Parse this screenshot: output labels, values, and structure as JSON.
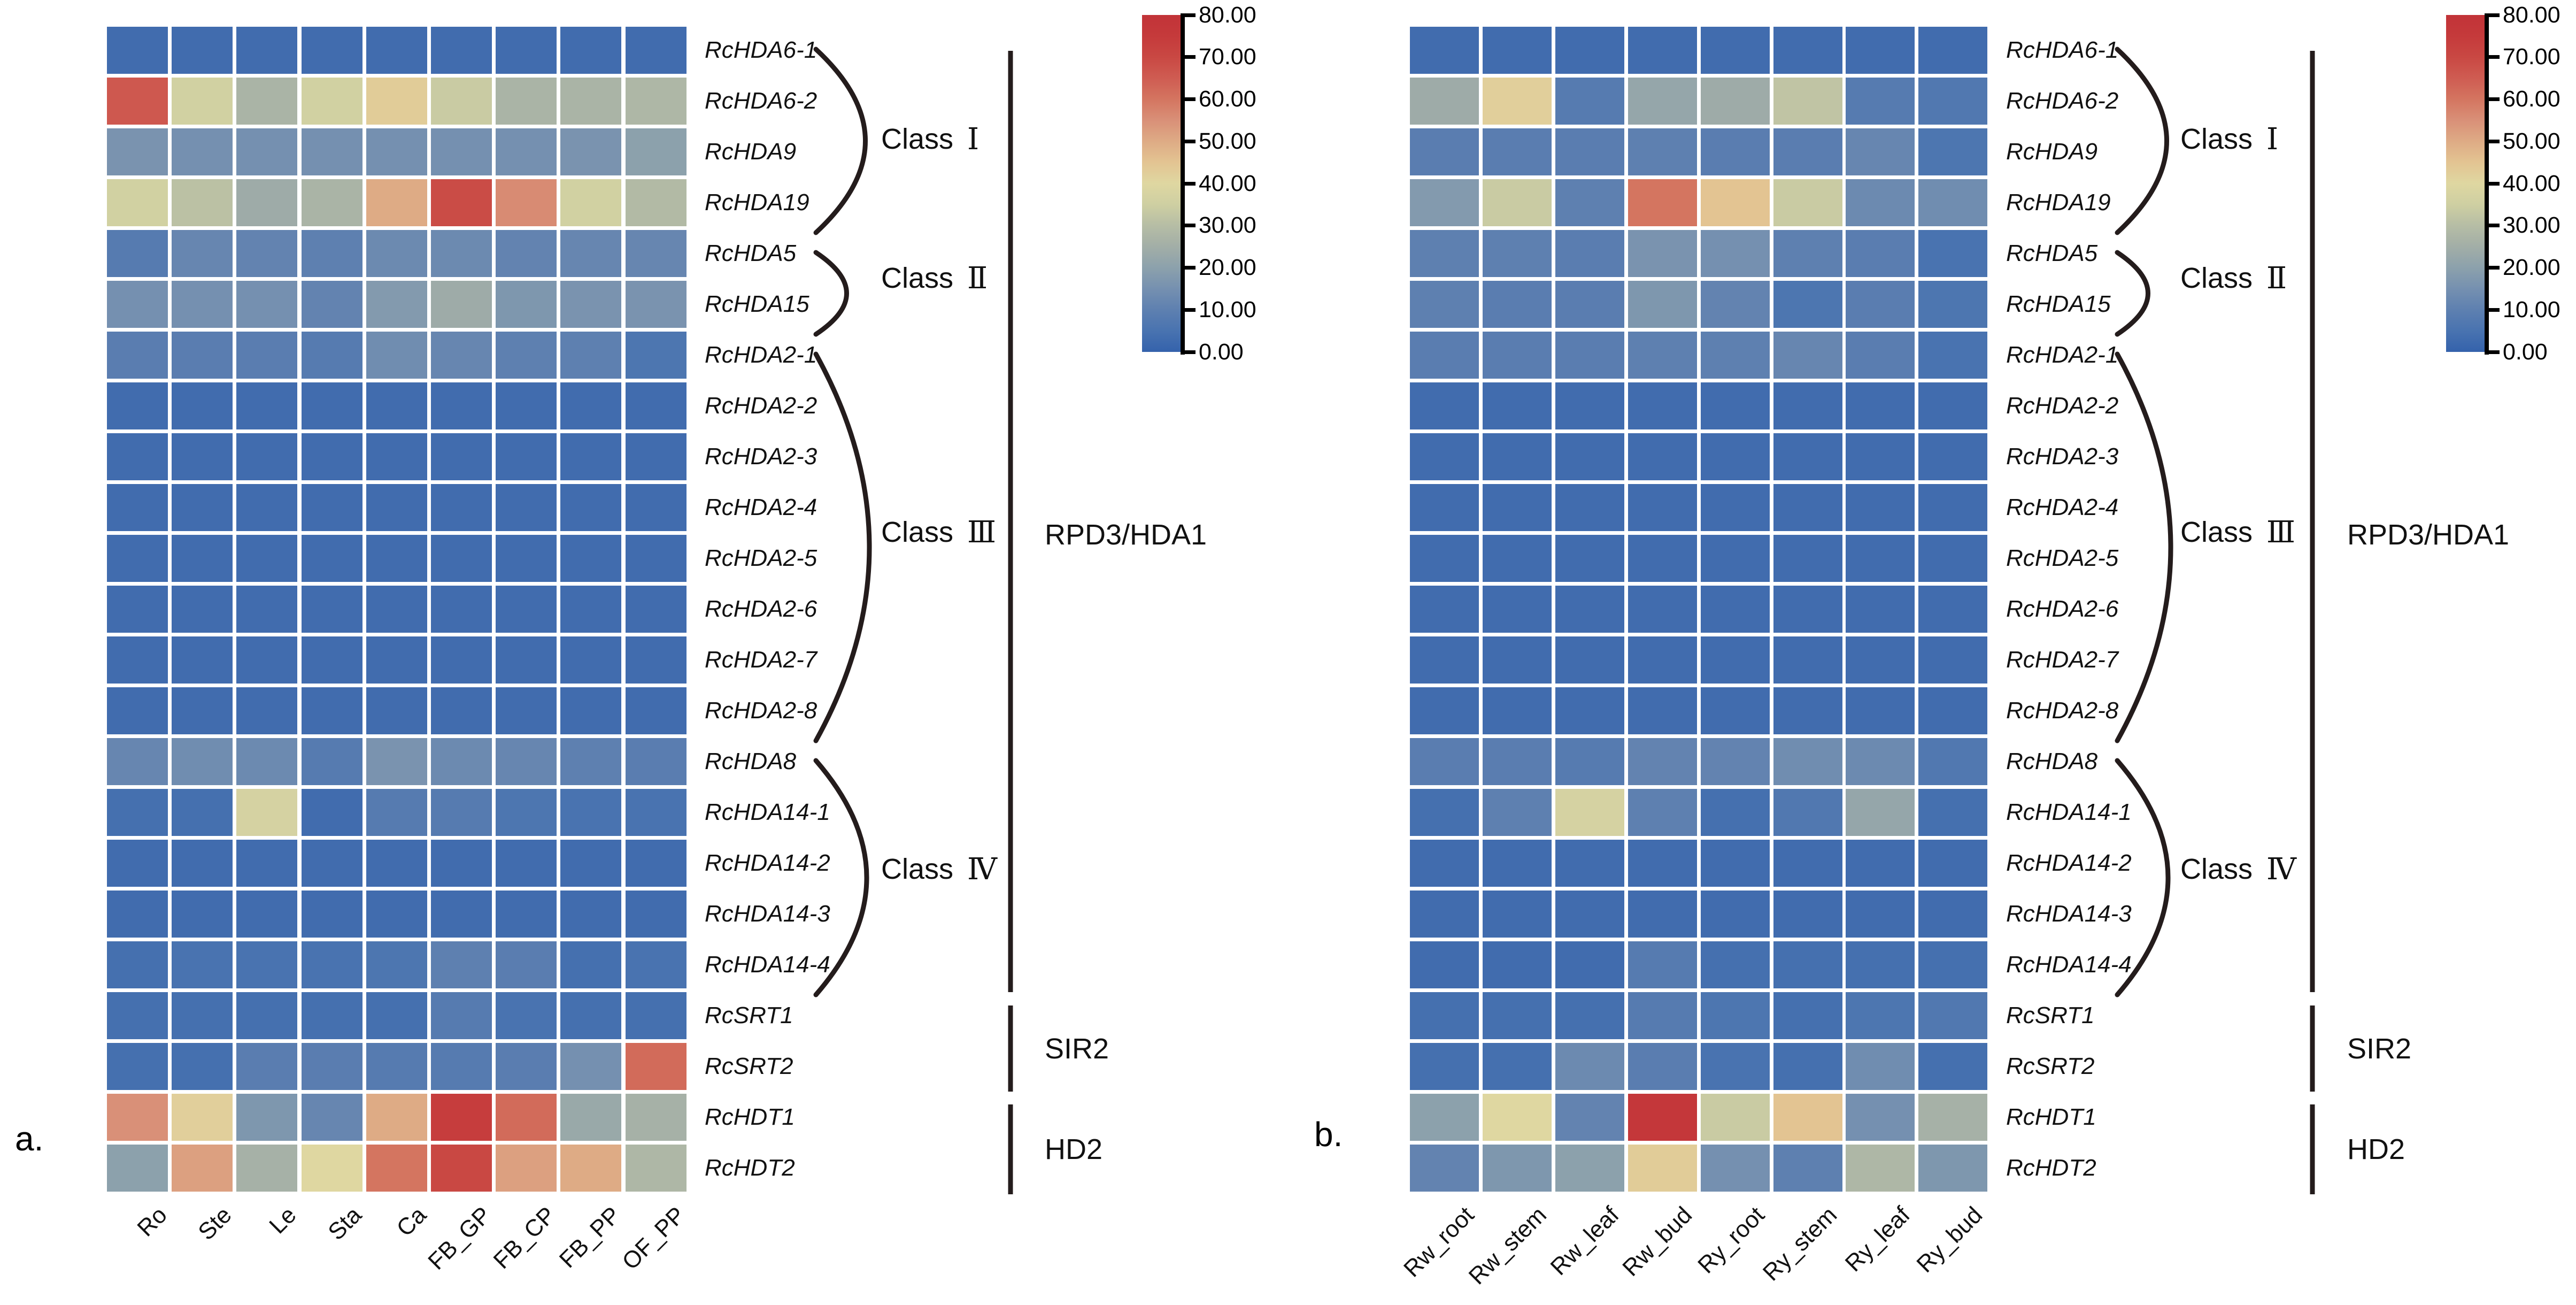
{
  "chart_data": [
    {
      "type": "heatmap",
      "panel_letter": "a.",
      "x_categories": [
        "Ro",
        "Ste",
        "Le",
        "Sta",
        "Ca",
        "FB_GP",
        "FB_CP",
        "FB_PP",
        "OF_PP"
      ],
      "y_categories": [
        "RcHDA6-1",
        "RcHDA6-2",
        "RcHDA9",
        "RcHDA19",
        "RcHDA5",
        "RcHDA15",
        "RcHDA2-1",
        "RcHDA2-2",
        "RcHDA2-3",
        "RcHDA2-4",
        "RcHDA2-5",
        "RcHDA2-6",
        "RcHDA2-7",
        "RcHDA2-8",
        "RcHDA8",
        "RcHDA14-1",
        "RcHDA14-2",
        "RcHDA14-3",
        "RcHDA14-4",
        "RcSRT1",
        "RcSRT2",
        "RcHDT1",
        "RcHDT2"
      ],
      "values": [
        [
          3,
          3,
          3,
          3,
          3,
          3,
          3,
          3,
          3
        ],
        [
          66,
          36,
          27,
          36,
          43,
          34,
          27,
          27,
          28
        ],
        [
          16,
          15,
          15,
          15,
          15,
          15,
          15,
          16,
          20
        ],
        [
          36,
          31,
          24,
          27,
          50,
          69,
          56,
          36,
          29
        ],
        [
          8,
          12,
          11,
          10,
          13,
          13,
          11,
          12,
          12
        ],
        [
          15,
          15,
          15,
          11,
          18,
          24,
          17,
          16,
          16
        ],
        [
          9,
          9,
          9,
          8,
          14,
          12,
          10,
          10,
          6
        ],
        [
          3,
          3,
          3,
          3,
          3,
          3,
          3,
          3,
          3
        ],
        [
          3,
          3,
          3,
          3,
          3,
          3,
          3,
          3,
          3
        ],
        [
          3,
          3,
          3,
          3,
          3,
          3,
          3,
          3,
          3
        ],
        [
          3,
          3,
          3,
          3,
          3,
          3,
          3,
          3,
          3
        ],
        [
          3,
          3,
          3,
          3,
          3,
          3,
          3,
          3,
          3
        ],
        [
          3,
          3,
          3,
          3,
          3,
          3,
          3,
          3,
          3
        ],
        [
          3,
          3,
          3,
          3,
          3,
          3,
          3,
          3,
          3
        ],
        [
          12,
          14,
          13,
          8,
          16,
          13,
          12,
          10,
          9
        ],
        [
          4,
          4,
          37,
          3,
          8,
          8,
          6,
          5,
          5
        ],
        [
          3,
          3,
          3,
          3,
          3,
          3,
          3,
          3,
          3
        ],
        [
          3,
          3,
          3,
          3,
          3,
          3,
          3,
          3,
          3
        ],
        [
          4,
          5,
          5,
          5,
          6,
          10,
          9,
          4,
          5
        ],
        [
          4,
          4,
          4,
          4,
          4,
          8,
          5,
          4,
          4
        ],
        [
          4,
          4,
          9,
          9,
          8,
          8,
          9,
          15,
          62
        ],
        [
          55,
          42,
          17,
          12,
          50,
          74,
          62,
          23,
          26
        ],
        [
          20,
          52,
          26,
          40,
          60,
          70,
          52,
          50,
          28
        ]
      ],
      "class_groups": [
        {
          "label": "Class Ⅰ",
          "first_row": 0,
          "last_row": 3
        },
        {
          "label": "Class Ⅱ",
          "first_row": 4,
          "last_row": 5
        },
        {
          "label": "Class Ⅲ",
          "first_row": 6,
          "last_row": 13
        },
        {
          "label": "Class Ⅳ",
          "first_row": 14,
          "last_row": 18
        }
      ],
      "family_groups": [
        {
          "label": "RPD3/HDA1",
          "first_row": 0,
          "last_row": 18
        },
        {
          "label": "SIR2",
          "first_row": 19,
          "last_row": 20
        },
        {
          "label": "HD2",
          "first_row": 21,
          "last_row": 22
        }
      ],
      "colorbar": {
        "min": 0,
        "max": 80,
        "tick_labels": [
          "80.00",
          "70.00",
          "60.00",
          "50.00",
          "40.00",
          "30.00",
          "20.00",
          "10.00",
          "0.00"
        ],
        "position": "right"
      }
    },
    {
      "type": "heatmap",
      "panel_letter": "b.",
      "x_categories": [
        "Rw_root",
        "Rw_stem",
        "Rw_leaf",
        "Rw_bud",
        "Ry_root",
        "Ry_stem",
        "Ry_leaf",
        "Ry_bud"
      ],
      "y_categories": [
        "RcHDA6-1",
        "RcHDA6-2",
        "RcHDA9",
        "RcHDA19",
        "RcHDA5",
        "RcHDA15",
        "RcHDA2-1",
        "RcHDA2-2",
        "RcHDA2-3",
        "RcHDA2-4",
        "RcHDA2-5",
        "RcHDA2-6",
        "RcHDA2-7",
        "RcHDA2-8",
        "RcHDA8",
        "RcHDA14-1",
        "RcHDA14-2",
        "RcHDA14-3",
        "RcHDA14-4",
        "RcSRT1",
        "RcSRT2",
        "RcHDT1",
        "RcHDT2"
      ],
      "values": [
        [
          3,
          3,
          3,
          3,
          3,
          3,
          3,
          3
        ],
        [
          24,
          42,
          8,
          22,
          24,
          32,
          8,
          7
        ],
        [
          9,
          9,
          9,
          10,
          9,
          9,
          12,
          6
        ],
        [
          18,
          34,
          10,
          60,
          45,
          34,
          13,
          14
        ],
        [
          10,
          10,
          9,
          16,
          15,
          10,
          9,
          5
        ],
        [
          10,
          9,
          9,
          17,
          11,
          6,
          9,
          6
        ],
        [
          9,
          9,
          9,
          10,
          10,
          12,
          9,
          5
        ],
        [
          3,
          3,
          3,
          3,
          3,
          3,
          3,
          3
        ],
        [
          3,
          3,
          3,
          3,
          3,
          3,
          3,
          3
        ],
        [
          3,
          3,
          3,
          3,
          3,
          3,
          3,
          3
        ],
        [
          3,
          3,
          3,
          3,
          3,
          3,
          3,
          3
        ],
        [
          3,
          3,
          3,
          3,
          3,
          3,
          3,
          3
        ],
        [
          3,
          3,
          3,
          3,
          3,
          3,
          3,
          3
        ],
        [
          3,
          3,
          3,
          3,
          3,
          3,
          3,
          3
        ],
        [
          9,
          9,
          8,
          11,
          11,
          14,
          13,
          7
        ],
        [
          4,
          10,
          37,
          10,
          4,
          7,
          22,
          4
        ],
        [
          3,
          3,
          3,
          3,
          3,
          3,
          3,
          3
        ],
        [
          3,
          3,
          3,
          3,
          3,
          3,
          3,
          3
        ],
        [
          3,
          3,
          3,
          8,
          4,
          4,
          4,
          4
        ],
        [
          4,
          4,
          4,
          8,
          6,
          4,
          6,
          7
        ],
        [
          4,
          4,
          13,
          9,
          5,
          4,
          14,
          4
        ],
        [
          20,
          40,
          11,
          77,
          34,
          45,
          15,
          26
        ],
        [
          11,
          17,
          20,
          43,
          15,
          10,
          28,
          17
        ]
      ],
      "class_groups": [
        {
          "label": "Class Ⅰ",
          "first_row": 0,
          "last_row": 3
        },
        {
          "label": "Class Ⅱ",
          "first_row": 4,
          "last_row": 5
        },
        {
          "label": "Class Ⅲ",
          "first_row": 6,
          "last_row": 13
        },
        {
          "label": "Class Ⅳ",
          "first_row": 14,
          "last_row": 18
        }
      ],
      "family_groups": [
        {
          "label": "RPD3/HDA1",
          "first_row": 0,
          "last_row": 18
        },
        {
          "label": "SIR2",
          "first_row": 19,
          "last_row": 20
        },
        {
          "label": "HD2",
          "first_row": 21,
          "last_row": 22
        }
      ],
      "colorbar": {
        "min": 0,
        "max": 80,
        "tick_labels": [
          "80.00",
          "70.00",
          "60.00",
          "50.00",
          "40.00",
          "30.00",
          "20.00",
          "10.00",
          "0.00"
        ],
        "position": "right"
      }
    }
  ],
  "colors": {
    "colormap_stops": [
      [
        0,
        "#3462AC"
      ],
      [
        5,
        "#4973B0"
      ],
      [
        10,
        "#5E80B0"
      ],
      [
        15,
        "#7590B0"
      ],
      [
        20,
        "#8CA1AC"
      ],
      [
        25,
        "#A2AEA7"
      ],
      [
        30,
        "#B6BDA5"
      ],
      [
        35,
        "#CECFA2"
      ],
      [
        40,
        "#DFD7A1"
      ],
      [
        45,
        "#E3C492"
      ],
      [
        50,
        "#DEAB85"
      ],
      [
        55,
        "#D99078"
      ],
      [
        60,
        "#D47560"
      ],
      [
        65,
        "#CF5C52"
      ],
      [
        70,
        "#C94843"
      ],
      [
        75,
        "#C53A3B"
      ],
      [
        80,
        "#C23338"
      ]
    ],
    "bracket_stroke": "#241C1C",
    "background": "#FFFFFF"
  }
}
